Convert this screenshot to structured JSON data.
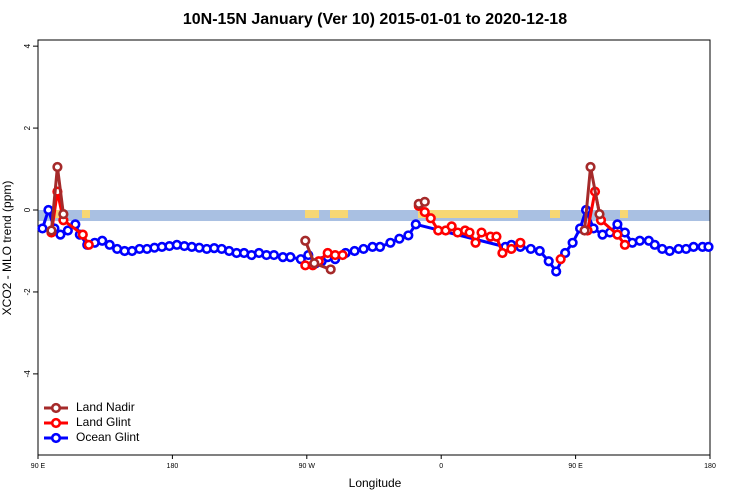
{
  "chart_data": {
    "type": "line",
    "title": "10N-15N January (Ver 10)   2015-01-01 to 2020-12-18",
    "x_label": "Longitude",
    "y_label": "XCO2 - MLO trend (ppm)",
    "xlim": [
      90,
      540
    ],
    "xticks": [
      {
        "value": 90,
        "label": "90 E"
      },
      {
        "value": 180,
        "label": "180"
      },
      {
        "value": 270,
        "label": "90 W"
      },
      {
        "value": 360,
        "label": "0"
      },
      {
        "value": 450,
        "label": "90 E"
      },
      {
        "value": 540,
        "label": "180"
      }
    ],
    "ylim": [
      -5.98,
      4.15
    ],
    "yticks": [
      -4,
      -2,
      0,
      2,
      4
    ],
    "legend": "bottom-left",
    "series": [
      {
        "name": "Land Nadir",
        "color": "#a52a2a",
        "x": [
          99,
          103,
          107,
          190,
          269,
          275,
          286,
          300,
          345,
          349,
          400,
          456,
          460,
          466
        ],
        "values": [
          -0.5,
          1.05,
          -0.1,
          null,
          -0.75,
          -1.3,
          -1.45,
          null,
          0.15,
          0.2,
          null,
          -0.5,
          1.05,
          -0.1
        ]
      },
      {
        "name": "Land Glint",
        "color": "#ff0000",
        "x": [
          99,
          103,
          107,
          120,
          124,
          200,
          269,
          274,
          278,
          284,
          289,
          294,
          320,
          345,
          349,
          353,
          358,
          363,
          367,
          371,
          376,
          379,
          383,
          387,
          393,
          397,
          401,
          407,
          413,
          430,
          440,
          450,
          458,
          463,
          467,
          478,
          483
        ],
        "values": [
          -0.55,
          0.45,
          -0.25,
          -0.6,
          -0.85,
          null,
          -1.35,
          -1.35,
          -1.25,
          -1.05,
          -1.1,
          -1.1,
          null,
          0.1,
          -0.05,
          -0.2,
          -0.5,
          -0.5,
          -0.4,
          -0.55,
          -0.5,
          -0.55,
          -0.8,
          -0.55,
          -0.65,
          -0.65,
          -1.05,
          -0.95,
          -0.8,
          null,
          -1.2,
          null,
          -0.5,
          0.45,
          -0.25,
          -0.6,
          -0.85
        ]
      },
      {
        "name": "Ocean Glint",
        "color": "#0000ff",
        "x": [
          93,
          97,
          101,
          105,
          110,
          115,
          118,
          123,
          128,
          133,
          138,
          143,
          148,
          153,
          158,
          163,
          168,
          173,
          178,
          183,
          188,
          193,
          198,
          203,
          208,
          213,
          218,
          223,
          228,
          233,
          238,
          243,
          248,
          254,
          259,
          266,
          271,
          276,
          280,
          284,
          289,
          296,
          302,
          308,
          314,
          319,
          326,
          332,
          338,
          343,
          403,
          407,
          413,
          420,
          426,
          432,
          437,
          443,
          448,
          453,
          457,
          462,
          468,
          473,
          478,
          483,
          488,
          493,
          499,
          503,
          508,
          513,
          519,
          524,
          529,
          535,
          539
        ],
        "values": [
          -0.45,
          0.0,
          -0.45,
          -0.6,
          -0.5,
          -0.35,
          -0.6,
          -0.85,
          -0.8,
          -0.75,
          -0.85,
          -0.95,
          -1.0,
          -1.0,
          -0.95,
          -0.95,
          -0.92,
          -0.9,
          -0.88,
          -0.85,
          -0.88,
          -0.9,
          -0.92,
          -0.95,
          -0.93,
          -0.95,
          -1.0,
          -1.05,
          -1.05,
          -1.1,
          -1.05,
          -1.1,
          -1.1,
          -1.15,
          -1.15,
          -1.2,
          -1.1,
          -1.3,
          -1.25,
          -1.15,
          -1.2,
          -1.05,
          -1.0,
          -0.95,
          -0.9,
          -0.9,
          -0.8,
          -0.7,
          -0.62,
          -0.35,
          -0.9,
          -0.85,
          -0.9,
          -0.95,
          -1.0,
          -1.25,
          -1.5,
          -1.05,
          -0.8,
          -0.45,
          0.0,
          -0.45,
          -0.6,
          -0.55,
          -0.35,
          -0.55,
          -0.8,
          -0.75,
          -0.75,
          -0.85,
          -0.95,
          -1.0,
          -0.95,
          -0.95,
          -0.9,
          -0.9,
          -0.9
        ]
      }
    ]
  }
}
